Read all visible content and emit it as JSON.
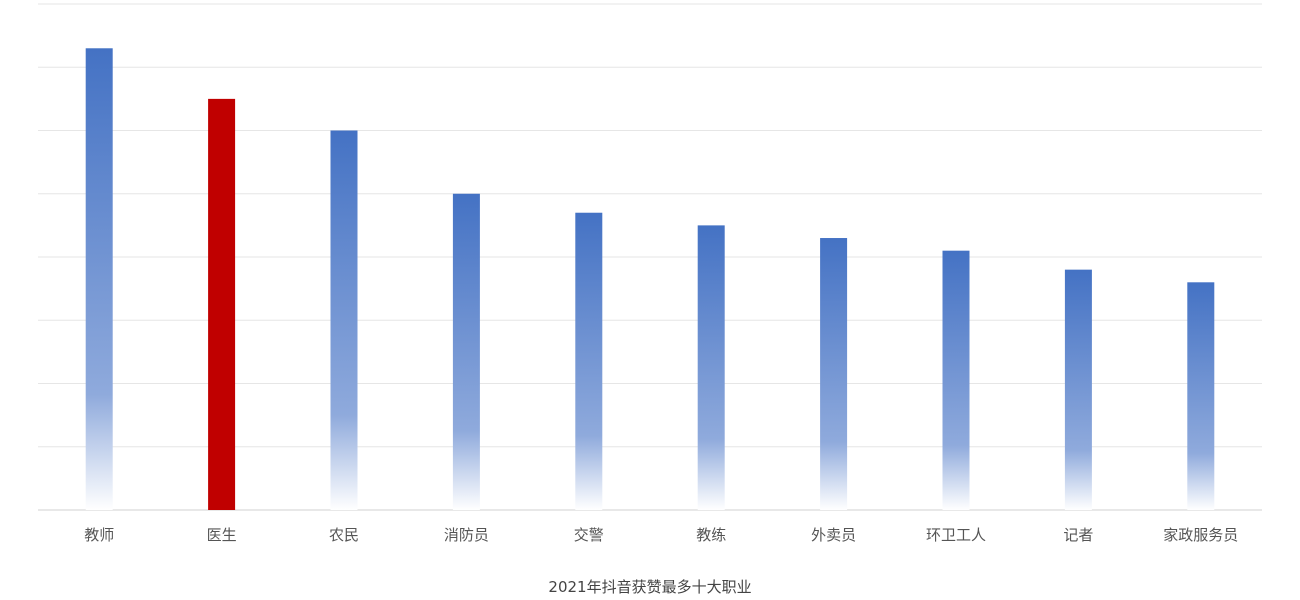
{
  "chart_data": {
    "type": "bar",
    "title": "2021年抖音获赞最多十大职业",
    "xlabel": "",
    "ylabel": "",
    "categories": [
      "教师",
      "医生",
      "农民",
      "消防员",
      "交警",
      "教练",
      "外卖员",
      "环卫工人",
      "记者",
      "家政服务员"
    ],
    "values": [
      7.3,
      6.5,
      6.0,
      5.0,
      4.7,
      4.5,
      4.3,
      4.1,
      3.8,
      3.6
    ],
    "ylim": [
      0,
      8
    ],
    "y_tick_labels_shown": false,
    "grid": true,
    "legend": "none",
    "colors": {
      "default": "#4472c4",
      "highlight": "#c00000",
      "grid": "#e6e6e6",
      "axis": "#d0d0d0"
    },
    "highlight_category": "医生"
  }
}
